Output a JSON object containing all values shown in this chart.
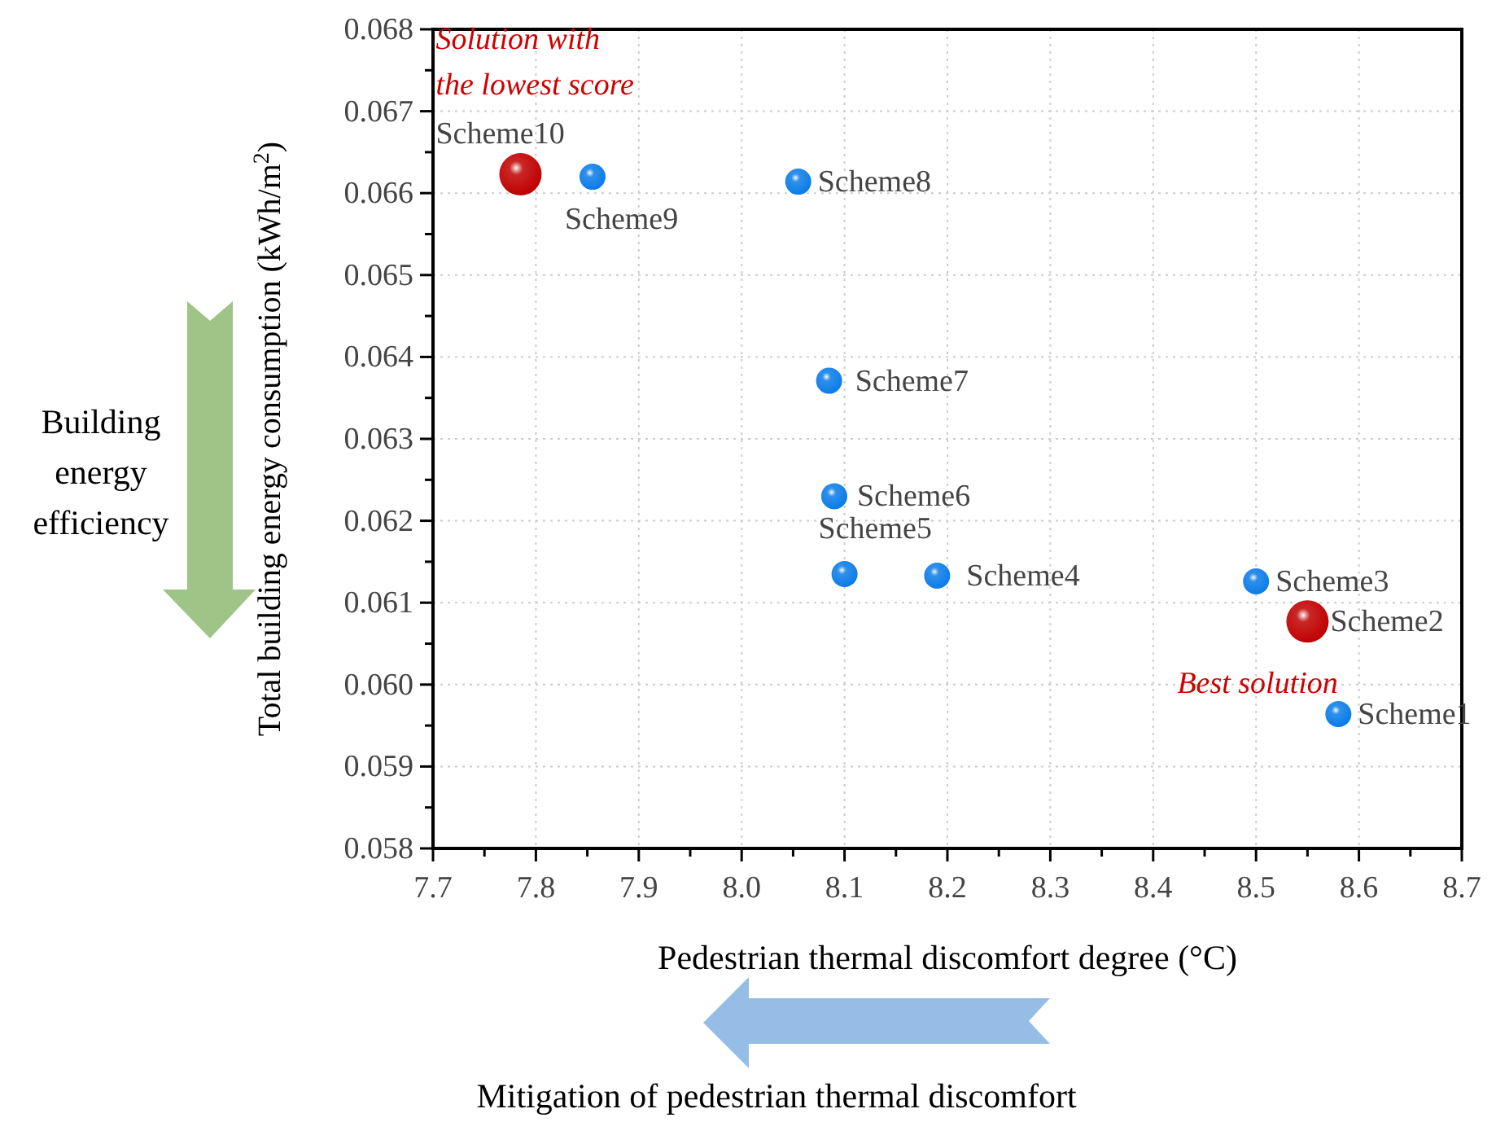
{
  "chart_data": {
    "type": "scatter",
    "xlabel": "Pedestrian thermal discomfort degree (°C)",
    "ylabel": "Total building energy consumption (kWh/m$^{2}$)",
    "xlim": [
      7.7,
      8.7
    ],
    "xticks": [
      7.7,
      7.8,
      7.9,
      {
        "value": 8.0,
        "label": "8.0"
      },
      8.1,
      8.2,
      8.3,
      8.4,
      8.5,
      8.6,
      8.7
    ],
    "ylim": [
      0.058,
      0.068
    ],
    "yticks": [
      0.058,
      0.059,
      {
        "value": 0.06,
        "label": "0.060"
      },
      0.061,
      0.062,
      0.063,
      0.064,
      0.065,
      0.066,
      0.067,
      0.068
    ],
    "grid": true,
    "marker": "circle",
    "series": [
      {
        "color": "#0a7ce8",
        "x": [
          8.58,
          8.5,
          8.19,
          8.1,
          8.09,
          8.085,
          8.055,
          7.855
        ],
        "values": [
          0.05964,
          0.06126,
          0.06133,
          0.06135,
          0.0623,
          0.06371,
          0.06614,
          0.0662
        ]
      },
      {
        "color": "#c00000",
        "x": [
          8.55,
          7.785
        ],
        "values": [
          0.06077,
          0.06623
        ]
      }
    ],
    "annotations": [
      {
        "text": "Scheme1",
        "x": 8.58,
        "y": 0.05964
      },
      {
        "text": "Scheme2",
        "x": 8.55,
        "y": 0.06077
      },
      {
        "text": "Scheme3",
        "x": 8.5,
        "y": 0.06126
      },
      {
        "text": "Scheme4",
        "x": 8.19,
        "y": 0.06133
      },
      {
        "text": "Scheme5",
        "x": 8.1,
        "y": 0.06135
      },
      {
        "text": "Scheme6",
        "x": 8.09,
        "y": 0.0623
      },
      {
        "text": "Scheme7",
        "x": 8.085,
        "y": 0.06371
      },
      {
        "text": "Scheme8",
        "x": 8.055,
        "y": 0.06614
      },
      {
        "text": "Scheme9",
        "x": 7.855,
        "y": 0.0662
      },
      {
        "text": "Scheme10",
        "x": 7.785,
        "y": 0.06623
      },
      {
        "text": "Solution with the lowest score",
        "x": 7.785,
        "y": 0.06623
      },
      {
        "text": "Best solution",
        "x": 8.55,
        "y": 0.06077
      },
      "Building energy efficiency",
      "Mitigation of pedestrian thermal discomfort"
    ]
  }
}
